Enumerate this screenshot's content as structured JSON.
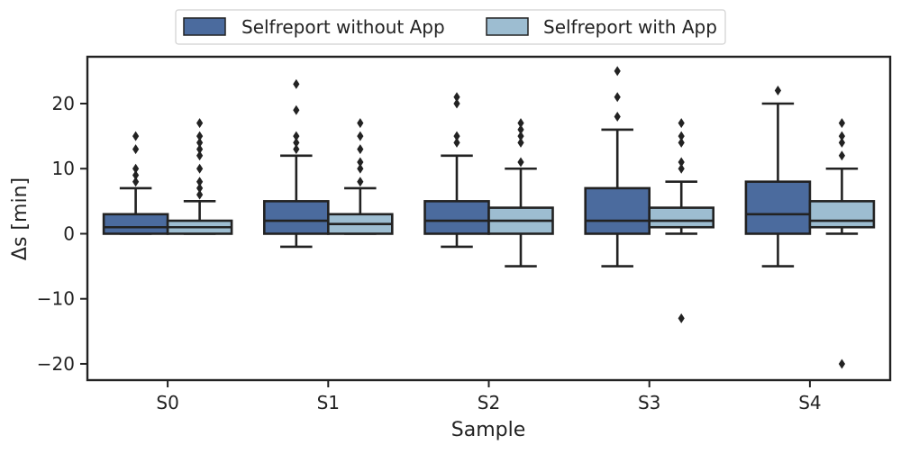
{
  "chart_data": {
    "type": "boxplot",
    "xlabel": "Sample",
    "ylabel": "Δs [min]",
    "ylim": [
      -22.5,
      27.2
    ],
    "yticks": [
      -20,
      -10,
      0,
      10,
      20
    ],
    "grid": false,
    "legend_placement": "top-center, above plot",
    "categories": [
      "S0",
      "S1",
      "S2",
      "S3",
      "S4"
    ],
    "series": [
      {
        "name": "Selfreport without App",
        "color": "#4b6b9e",
        "boxes": [
          {
            "whisker_low": 0,
            "q1": 0,
            "median": 1,
            "q3": 3,
            "whisker_high": 7,
            "outliers": [
              8,
              9,
              10,
              13,
              15
            ]
          },
          {
            "whisker_low": -2,
            "q1": 0,
            "median": 2,
            "q3": 5,
            "whisker_high": 12,
            "outliers": [
              13,
              14,
              15,
              19,
              23
            ]
          },
          {
            "whisker_low": -2,
            "q1": 0,
            "median": 2,
            "q3": 5,
            "whisker_high": 12,
            "outliers": [
              14,
              15,
              20,
              21
            ]
          },
          {
            "whisker_low": -5,
            "q1": 0,
            "median": 2,
            "q3": 7,
            "whisker_high": 16,
            "outliers": [
              18,
              21,
              25
            ]
          },
          {
            "whisker_low": -5,
            "q1": 0,
            "median": 3,
            "q3": 8,
            "whisker_high": 20,
            "outliers": [
              22
            ]
          }
        ]
      },
      {
        "name": "Selfreport with App",
        "color": "#9dbdd1",
        "boxes": [
          {
            "whisker_low": 0,
            "q1": 0,
            "median": 1,
            "q3": 2,
            "whisker_high": 5,
            "outliers": [
              6,
              7,
              8,
              10,
              12,
              13,
              14,
              15,
              17
            ]
          },
          {
            "whisker_low": 0,
            "q1": 0,
            "median": 1.5,
            "q3": 3,
            "whisker_high": 7,
            "outliers": [
              8,
              10,
              11,
              13,
              15,
              17
            ]
          },
          {
            "whisker_low": -5,
            "q1": 0,
            "median": 2,
            "q3": 4,
            "whisker_high": 10,
            "outliers": [
              11,
              14,
              15,
              16,
              17
            ]
          },
          {
            "whisker_low": 0,
            "q1": 1,
            "median": 2,
            "q3": 4,
            "whisker_high": 8,
            "outliers": [
              -13,
              10,
              11,
              14,
              15,
              17
            ]
          },
          {
            "whisker_low": 0,
            "q1": 1,
            "median": 2,
            "q3": 5,
            "whisker_high": 10,
            "outliers": [
              -20,
              12,
              14,
              15,
              17
            ]
          }
        ]
      }
    ]
  }
}
